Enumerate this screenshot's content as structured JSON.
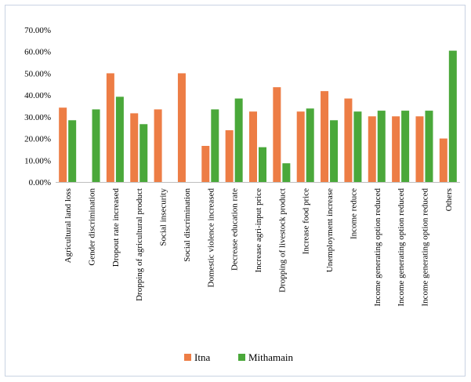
{
  "chart_data": {
    "type": "bar",
    "y_axis": {
      "min": 0,
      "max": 0.7,
      "step": 0.1,
      "tick_labels": [
        "0.00%",
        "10.00%",
        "20.00%",
        "30.00%",
        "40.00%",
        "50.00%",
        "60.00%",
        "70.00%"
      ]
    },
    "categories": [
      "Agricultural land loss",
      "Gender discrimination",
      "Dropout rate increased",
      "Dropping of agricultural product",
      "Social insecurity",
      "Social discrimination",
      "Domestic  violence increased",
      "Decrease education rate",
      "Increase agri-input price",
      "Dropping of livestock product",
      "Increase food price",
      "Unemployment  increase",
      "Income reduce",
      "Income generating option reduced",
      "Income generating option reduced",
      "Income generating option reduced",
      "Others"
    ],
    "series": [
      {
        "name": "Itna",
        "color": "#ed7d45",
        "values": [
          0.342,
          0,
          0.5,
          0.316,
          0.334,
          0.5,
          0.166,
          0.238,
          0.324,
          0.436,
          0.324,
          0.418,
          0.384,
          0.302,
          0.302,
          0.302,
          0.2
        ]
      },
      {
        "name": "Mithamain",
        "color": "#4aa83a",
        "values": [
          0.284,
          0.334,
          0.392,
          0.266,
          0,
          0,
          0.334,
          0.384,
          0.16,
          0.086,
          0.338,
          0.284,
          0.324,
          0.328,
          0.328,
          0.328,
          0.604
        ]
      }
    ],
    "legend": {
      "position": "bottom"
    },
    "grid": false
  }
}
